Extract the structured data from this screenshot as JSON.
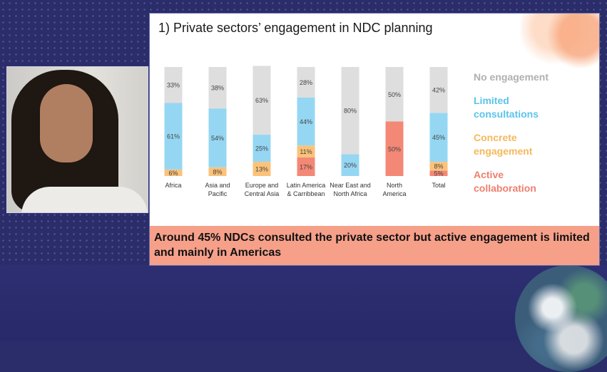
{
  "slide": {
    "title": "1) Private sectors’ engagement in NDC planning",
    "callout": "Around 45% NDCs consulted the private sector but active engagement is limited and mainly in Americas"
  },
  "legend": [
    {
      "label": "No engagement",
      "color": "#b0b0b0"
    },
    {
      "label": "Limited consultations",
      "color": "#5bc3ea"
    },
    {
      "label": "Concrete engagement",
      "color": "#f5b95c"
    },
    {
      "label": "Active collaboration",
      "color": "#ef7f6e"
    }
  ],
  "chart_data": {
    "type": "bar",
    "stacked": true,
    "categories": [
      [
        "Africa"
      ],
      [
        "Asia and",
        "Pacific"
      ],
      [
        "Europe and",
        "Central Asia"
      ],
      [
        "Latin America",
        "& Carribbean"
      ],
      [
        "Near East and",
        "North Africa"
      ],
      [
        "North",
        "America"
      ],
      [
        "Total"
      ]
    ],
    "series": [
      {
        "name": "Active collaboration",
        "color": "#f48876",
        "values": [
          0,
          0,
          0,
          17,
          0,
          50,
          5
        ]
      },
      {
        "name": "Concrete engagement",
        "color": "#fbc27a",
        "values": [
          6,
          8,
          13,
          11,
          0,
          0,
          8
        ]
      },
      {
        "name": "Limited consultations",
        "color": "#95d7f3",
        "values": [
          61,
          54,
          25,
          44,
          20,
          0,
          45
        ]
      },
      {
        "name": "No engagement",
        "color": "#dedede",
        "values": [
          33,
          38,
          63,
          28,
          80,
          50,
          42
        ]
      }
    ],
    "ylim": [
      0,
      100
    ],
    "unit": "%"
  }
}
